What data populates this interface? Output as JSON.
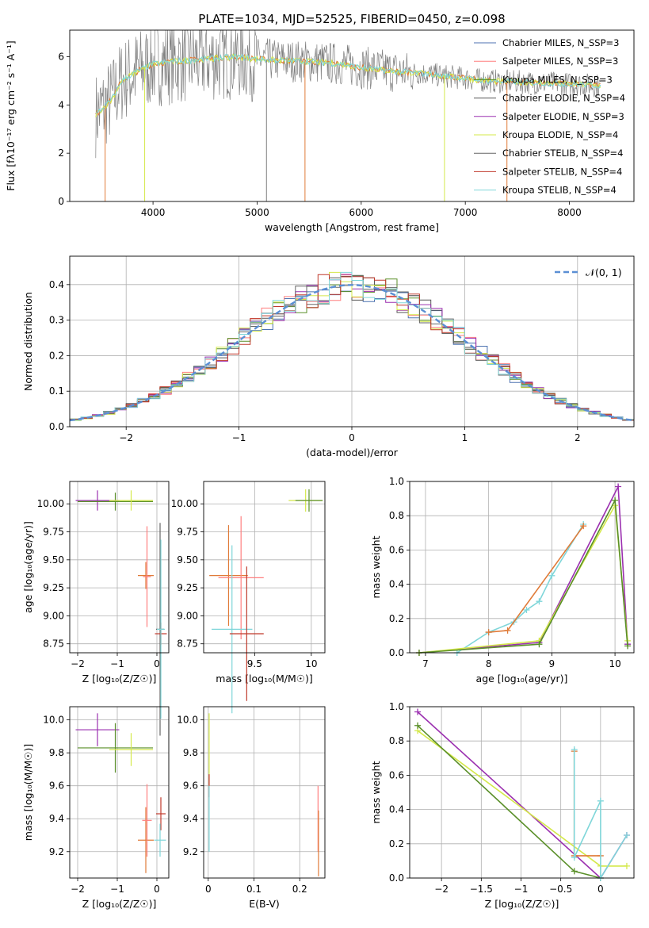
{
  "figure": {
    "title": "PLATE=1034, MJD=52525, FIBERID=0450, z=0.098"
  },
  "chart_data": [
    {
      "id": "spectrum",
      "type": "line",
      "title": "PLATE=1034, MJD=52525, FIBERID=0450, z=0.098",
      "xlabel": "wavelength [Angstrom, rest frame]",
      "ylabel": "Flux [fλ10⁻¹⁷ erg cm⁻² s⁻¹ A⁻¹]",
      "xlim": [
        3200,
        8620
      ],
      "ylim": [
        0,
        7.1
      ],
      "xticks": [
        4000,
        5000,
        6000,
        7000,
        8000
      ],
      "yticks": [
        0,
        2,
        4,
        6
      ],
      "grid": false,
      "legend_position": "top-right",
      "legend": [
        {
          "label": "Chabrier MILES, N_SSP=3",
          "color": "#4c72b0"
        },
        {
          "label": "Salpeter MILES, N_SSP=3",
          "color": "#ff7f7f"
        },
        {
          "label": "Kroupa MILES, N_SSP=3",
          "color": "#5a8f29"
        },
        {
          "label": "Chabrier ELODIE, N_SSP=4",
          "color": "#555555"
        },
        {
          "label": "Salpeter ELODIE, N_SSP=3",
          "color": "#9b30b0"
        },
        {
          "label": "Kroupa ELODIE, N_SSP=4",
          "color": "#d4e84a"
        },
        {
          "label": "Chabrier STELIB, N_SSP=4",
          "color": "#666666"
        },
        {
          "label": "Salpeter STELIB, N_SSP=4",
          "color": "#c0392b"
        },
        {
          "label": "Kroupa STELIB, N_SSP=4",
          "color": "#7fd6d9"
        }
      ],
      "continuum_points": [
        [
          3450,
          3.6
        ],
        [
          3600,
          4.2
        ],
        [
          3700,
          5.0
        ],
        [
          3850,
          5.4
        ],
        [
          4000,
          5.7
        ],
        [
          4200,
          5.8
        ],
        [
          4500,
          5.9
        ],
        [
          4800,
          6.0
        ],
        [
          5000,
          5.9
        ],
        [
          5200,
          5.85
        ],
        [
          5500,
          5.8
        ],
        [
          5800,
          5.7
        ],
        [
          6000,
          5.55
        ],
        [
          6300,
          5.4
        ],
        [
          6600,
          5.3
        ],
        [
          6900,
          5.15
        ],
        [
          7200,
          5.0
        ],
        [
          7500,
          4.95
        ],
        [
          7800,
          4.9
        ],
        [
          8100,
          4.85
        ],
        [
          8300,
          4.8
        ]
      ]
    },
    {
      "id": "residual-histogram",
      "type": "line",
      "xlabel": "(data-model)/error",
      "ylabel": "Normed distribution",
      "xlim": [
        -2.5,
        2.5
      ],
      "ylim": [
        0,
        0.48
      ],
      "xticks": [
        -2,
        -1,
        0,
        1,
        2
      ],
      "yticks": [
        0.0,
        0.1,
        0.2,
        0.3,
        0.4
      ],
      "grid": true,
      "legend_position": "top-right",
      "legend": [
        {
          "label": "𝒩(0, 1)",
          "color": "#5b8fd4"
        }
      ]
    },
    {
      "id": "age-vs-Z",
      "type": "scatter",
      "xlabel": "Z [log₁₀(Z/Z☉)]",
      "ylabel": "age  [log₁₀(age/yr)]",
      "xlim": [
        -2.2,
        0.3
      ],
      "ylim": [
        8.67,
        10.2
      ],
      "xticks": [
        -2,
        -1,
        0
      ],
      "yticks": [
        8.75,
        9.0,
        9.25,
        9.5,
        9.75,
        10.0
      ],
      "grid": true,
      "points": [
        {
          "x": -1.5,
          "y": 10.03,
          "xerr": 0.55,
          "yerr": 0.09,
          "color": "#9b30b0"
        },
        {
          "x": -1.05,
          "y": 10.02,
          "xerr": 0.95,
          "yerr": 0.08,
          "color": "#5a8f29"
        },
        {
          "x": -0.65,
          "y": 10.03,
          "xerr": 0.55,
          "yerr": 0.09,
          "color": "#d4e84a"
        },
        {
          "x": -0.28,
          "y": 9.36,
          "xerr": 0.2,
          "yerr": 0.12,
          "color": "#e07b39"
        },
        {
          "x": -0.25,
          "y": 9.35,
          "xerr": 0.1,
          "yerr": 0.45,
          "color": "#ff7f7f"
        },
        {
          "x": 0.08,
          "y": 8.88,
          "xerr": 0.1,
          "yerr": 0.95,
          "color": "#666666"
        },
        {
          "x": 0.1,
          "y": 8.84,
          "xerr": 0.15,
          "yerr": 0.1,
          "color": "#c0392b"
        },
        {
          "x": 0.1,
          "y": 8.88,
          "xerr": 0.1,
          "yerr": 0.8,
          "color": "#7fd6d9"
        }
      ]
    },
    {
      "id": "age-vs-mass",
      "type": "scatter",
      "xlabel": "mass [log₁₀(M/M☉)]",
      "ylabel": "",
      "xlim": [
        9.05,
        10.12
      ],
      "ylim": [
        8.67,
        10.2
      ],
      "xticks": [
        9.5,
        10.0
      ],
      "yticks": [
        8.75,
        9.0,
        9.25,
        9.5,
        9.75,
        10.0
      ],
      "grid": true,
      "points": [
        {
          "x": 9.27,
          "y": 9.36,
          "xerr": 0.17,
          "yerr": 0.45,
          "color": "#e07b39"
        },
        {
          "x": 9.38,
          "y": 9.34,
          "xerr": 0.2,
          "yerr": 0.55,
          "color": "#ff7f7f"
        },
        {
          "x": 9.3,
          "y": 8.88,
          "xerr": 0.18,
          "yerr": 0.75,
          "color": "#7fd6d9"
        },
        {
          "x": 9.43,
          "y": 8.84,
          "xerr": 0.15,
          "yerr": 0.6,
          "color": "#c0392b"
        },
        {
          "x": 9.95,
          "y": 10.03,
          "xerr": 0.15,
          "yerr": 0.1,
          "color": "#d4e84a"
        },
        {
          "x": 9.98,
          "y": 10.03,
          "xerr": 0.12,
          "yerr": 0.1,
          "color": "#5a8f29"
        }
      ]
    },
    {
      "id": "mass-weight-vs-age",
      "type": "line",
      "xlabel": "age  [log₁₀(age/yr)]",
      "ylabel": "mass weight",
      "xlim": [
        6.75,
        10.3
      ],
      "ylim": [
        0,
        1.0
      ],
      "xticks": [
        7,
        8,
        9,
        10
      ],
      "yticks": [
        0.0,
        0.2,
        0.4,
        0.6,
        0.8,
        1.0
      ],
      "grid": true,
      "series": [
        {
          "color": "#7fd6d9",
          "x": [
            7.5,
            8.0,
            8.4,
            8.6,
            8.8,
            9.0,
            9.5
          ],
          "y": [
            0.0,
            0.12,
            0.18,
            0.25,
            0.3,
            0.45,
            0.75
          ]
        },
        {
          "color": "#e07b39",
          "x": [
            8.0,
            8.3,
            9.5
          ],
          "y": [
            0.12,
            0.13,
            0.74
          ]
        },
        {
          "color": "#9b30b0",
          "x": [
            6.9,
            8.8,
            10.05,
            10.2
          ],
          "y": [
            0.0,
            0.06,
            0.97,
            0.05
          ]
        },
        {
          "color": "#d4e84a",
          "x": [
            6.9,
            8.8,
            10.0,
            10.2
          ],
          "y": [
            0.0,
            0.07,
            0.86,
            0.07
          ]
        },
        {
          "color": "#5a8f29",
          "x": [
            6.9,
            8.8,
            10.0,
            10.2
          ],
          "y": [
            0.0,
            0.05,
            0.89,
            0.04
          ]
        }
      ]
    },
    {
      "id": "mass-vs-Z",
      "type": "scatter",
      "xlabel": "Z [log₁₀(Z/Z☉)]",
      "ylabel": "mass [log₁₀(M/M☉)]",
      "xlim": [
        -2.2,
        0.3
      ],
      "ylim": [
        9.04,
        10.08
      ],
      "xticks": [
        -2,
        -1,
        0
      ],
      "yticks": [
        9.2,
        9.4,
        9.6,
        9.8,
        10.0
      ],
      "grid": true,
      "points": [
        {
          "x": -1.5,
          "y": 9.94,
          "xerr": 0.55,
          "yerr": 0.1,
          "color": "#9b30b0"
        },
        {
          "x": -1.05,
          "y": 9.83,
          "xerr": 0.95,
          "yerr": 0.15,
          "color": "#5a8f29"
        },
        {
          "x": -0.65,
          "y": 9.82,
          "xerr": 0.55,
          "yerr": 0.1,
          "color": "#d4e84a"
        },
        {
          "x": -0.28,
          "y": 9.27,
          "xerr": 0.2,
          "yerr": 0.2,
          "color": "#e07b39"
        },
        {
          "x": -0.25,
          "y": 9.39,
          "xerr": 0.12,
          "yerr": 0.22,
          "color": "#ff7f7f"
        },
        {
          "x": 0.1,
          "y": 9.43,
          "xerr": 0.12,
          "yerr": 0.1,
          "color": "#c0392b"
        },
        {
          "x": 0.08,
          "y": 9.27,
          "xerr": 0.15,
          "yerr": 0.1,
          "color": "#7fd6d9"
        }
      ]
    },
    {
      "id": "mass-vs-EBV",
      "type": "scatter",
      "xlabel": "E(B-V)",
      "ylabel": "",
      "xlim": [
        -0.01,
        0.255
      ],
      "ylim": [
        9.04,
        10.08
      ],
      "xticks": [
        0.0,
        0.1,
        0.2
      ],
      "yticks": [
        9.2,
        9.4,
        9.6,
        9.8,
        10.0
      ],
      "grid": true,
      "points": [
        {
          "x": 0.002,
          "y": 9.82,
          "xerr": 0.0,
          "yerr": 0.22,
          "color": "#d4e84a"
        },
        {
          "x": 0.002,
          "y": 9.6,
          "xerr": 0.0,
          "yerr": 0.07,
          "color": "#c0392b"
        },
        {
          "x": 0.002,
          "y": 9.4,
          "xerr": 0.0,
          "yerr": 0.2,
          "color": "#7fd6d9"
        },
        {
          "x": 0.24,
          "y": 9.4,
          "xerr": 0.0,
          "yerr": 0.2,
          "color": "#ff7f7f"
        },
        {
          "x": 0.241,
          "y": 9.25,
          "xerr": 0.0,
          "yerr": 0.2,
          "color": "#e07b39"
        }
      ]
    },
    {
      "id": "mass-weight-vs-Z",
      "type": "line",
      "xlabel": "Z [log₁₀(Z/Z☉)]",
      "ylabel": "mass weight",
      "xlim": [
        -2.4,
        0.42
      ],
      "ylim": [
        0,
        1.0
      ],
      "xticks": [
        -2.0,
        -1.5,
        -1.0,
        -0.5,
        0.0
      ],
      "yticks": [
        0.0,
        0.2,
        0.4,
        0.6,
        0.8,
        1.0
      ],
      "grid": true,
      "series": [
        {
          "color": "#9b30b0",
          "x": [
            -2.3,
            0.0,
            0.33
          ],
          "y": [
            0.97,
            0.0,
            0.25
          ]
        },
        {
          "color": "#d4e84a",
          "x": [
            -2.3,
            0.0,
            0.33
          ],
          "y": [
            0.86,
            0.07,
            0.07
          ]
        },
        {
          "color": "#5a8f29",
          "x": [
            -2.3,
            -0.33,
            0.0
          ],
          "y": [
            0.89,
            0.04,
            0.0
          ]
        },
        {
          "color": "#e07b39",
          "x": [
            -0.33,
            -0.33,
            0.0
          ],
          "y": [
            0.74,
            0.13,
            0.13
          ]
        },
        {
          "color": "#7fd6d9",
          "x": [
            -0.33,
            -0.33,
            0.0,
            0.0,
            0.33
          ],
          "y": [
            0.75,
            0.12,
            0.45,
            0.0,
            0.25
          ]
        }
      ]
    }
  ]
}
